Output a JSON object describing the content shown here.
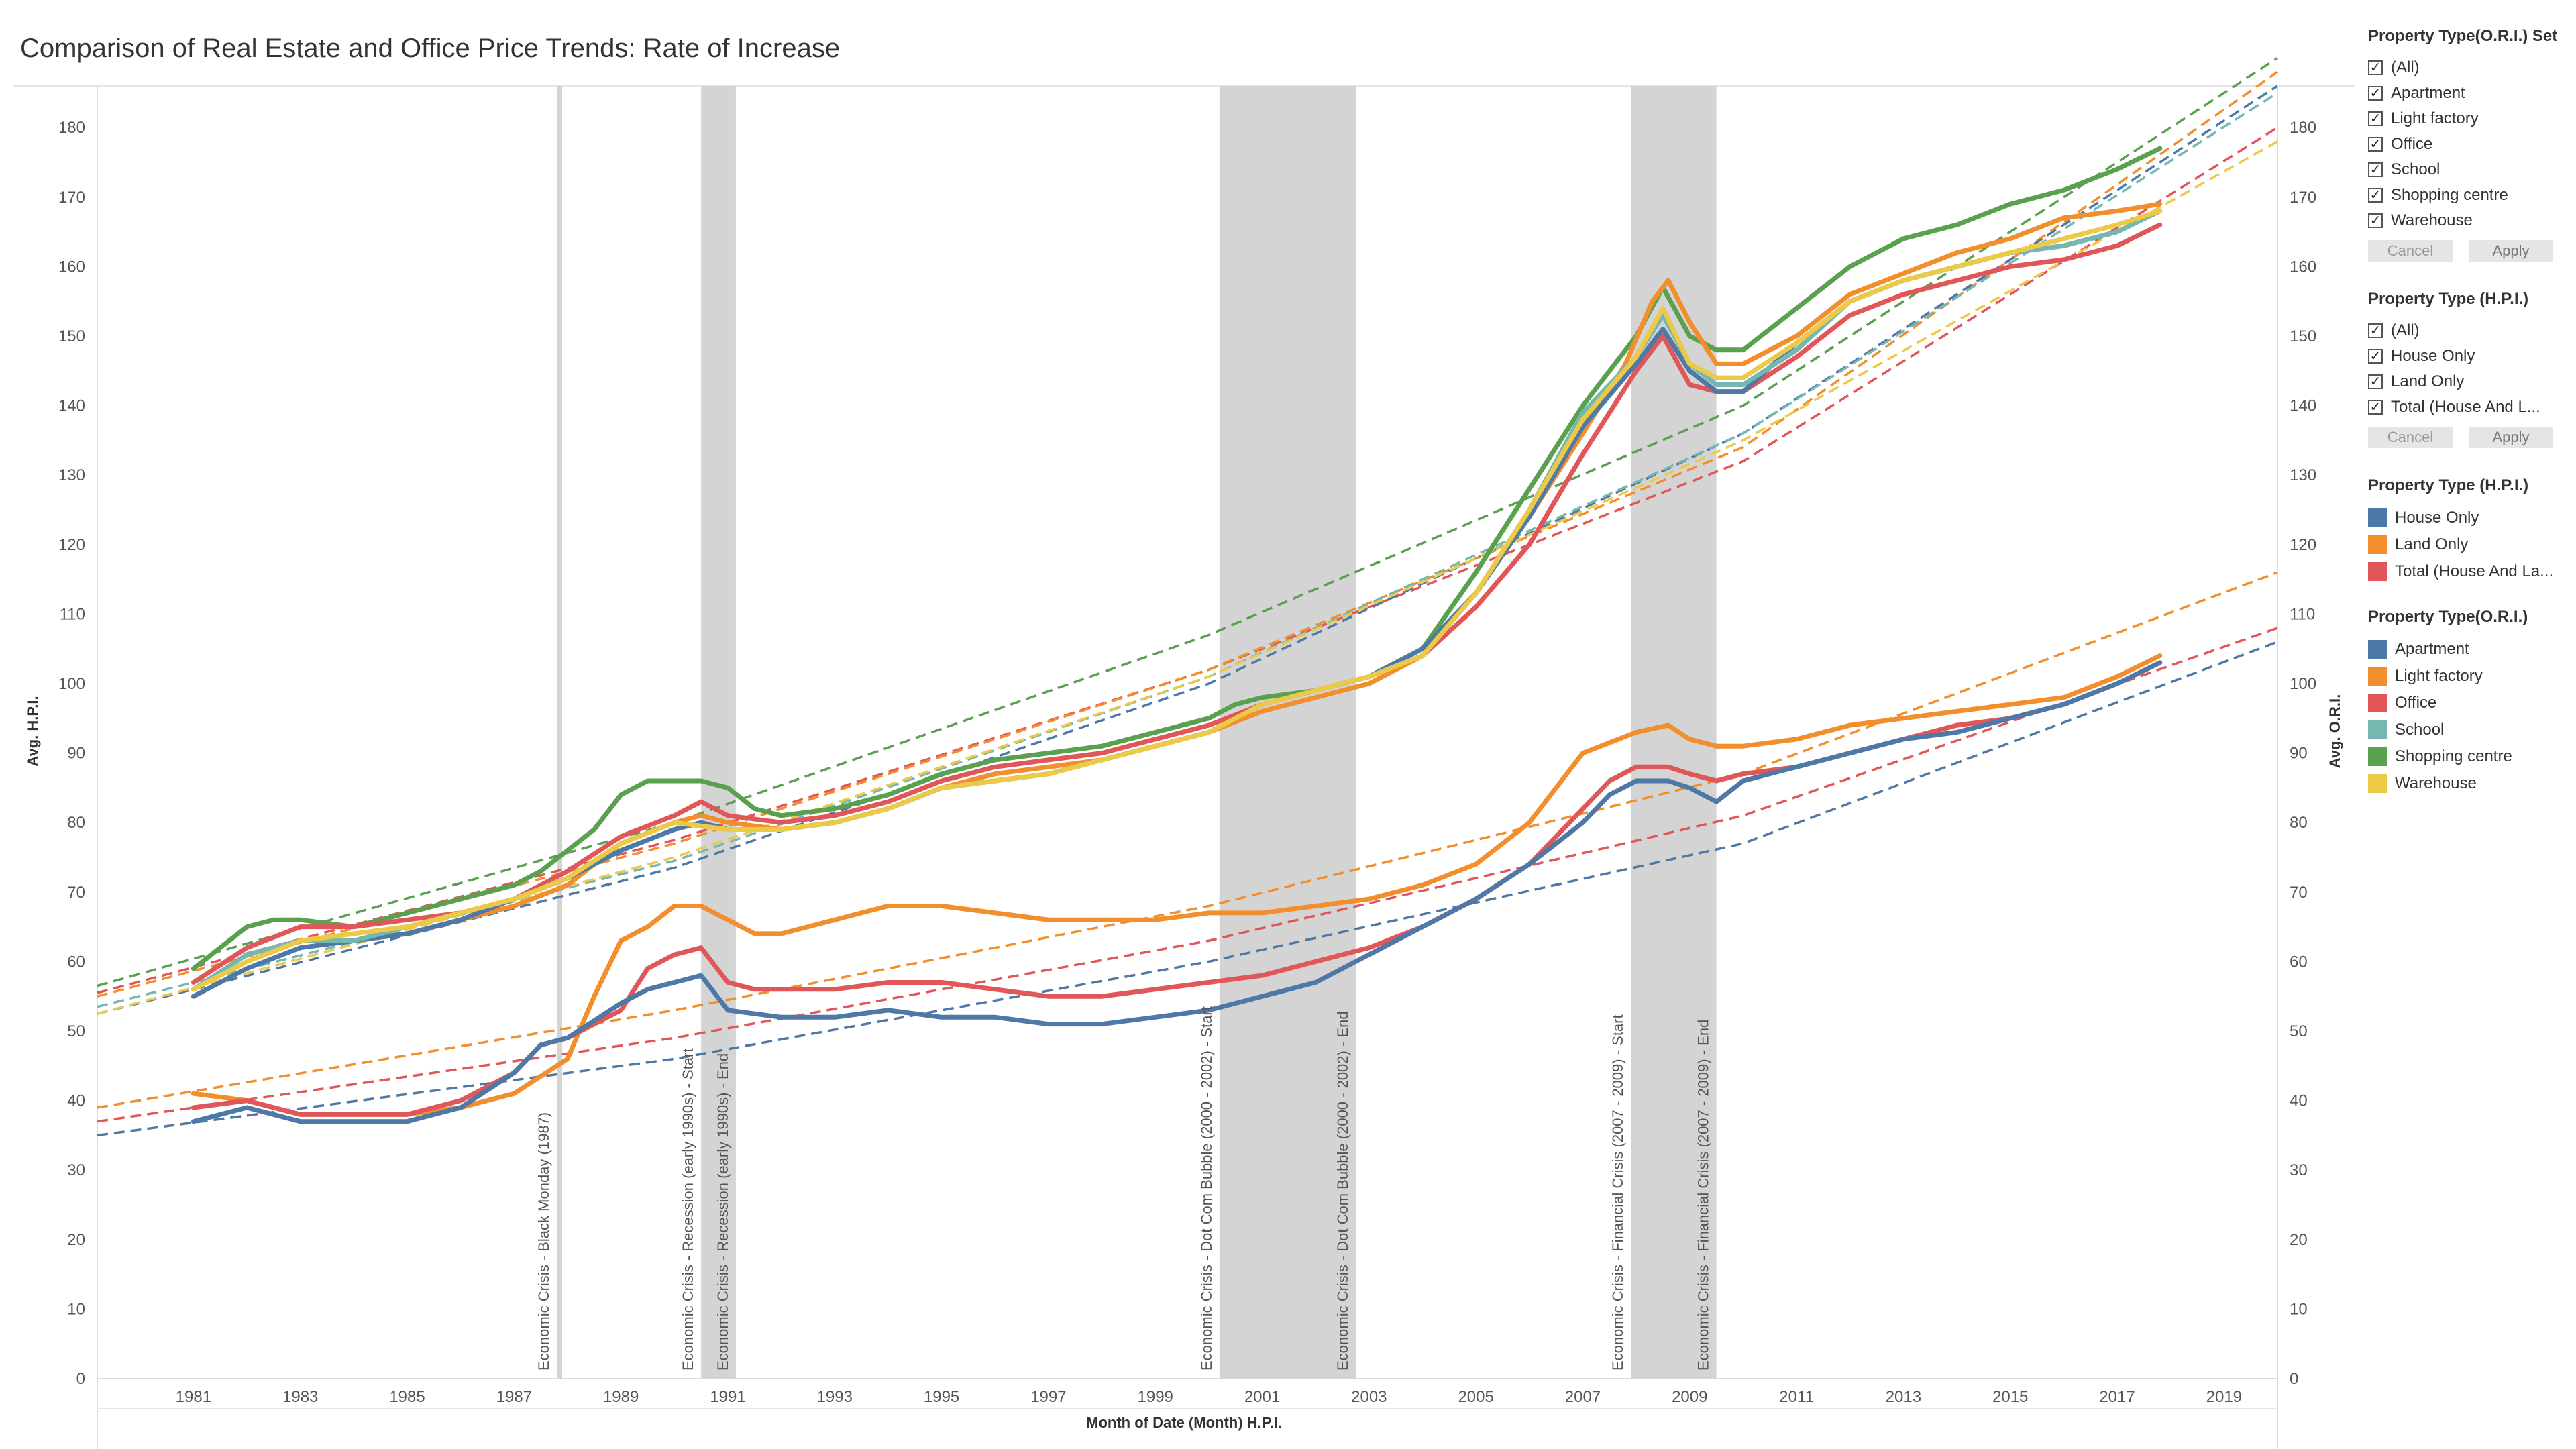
{
  "title": "Comparison of Real Estate and Office Price Trends: Rate of Increase",
  "filters": [
    {
      "title": "Property Type(O.R.I.) Set",
      "items": [
        "(All)",
        "Apartment",
        "Light factory",
        "Office",
        "School",
        "Shopping centre",
        "Warehouse"
      ],
      "cancel": "Cancel",
      "apply": "Apply"
    },
    {
      "title": "Property Type (H.P.I.)",
      "items": [
        "(All)",
        "House Only",
        "Land Only",
        "Total (House And L..."
      ],
      "cancel": "Cancel",
      "apply": "Apply"
    }
  ],
  "legends": [
    {
      "title": "Property Type (H.P.I.)",
      "items": [
        {
          "label": "House Only",
          "color": "#4e79a7"
        },
        {
          "label": "Land Only",
          "color": "#f28e2b"
        },
        {
          "label": "Total (House And La...",
          "color": "#e15759"
        }
      ]
    },
    {
      "title": "Property Type(O.R.I.)",
      "items": [
        {
          "label": "Apartment",
          "color": "#4e79a7"
        },
        {
          "label": "Light factory",
          "color": "#f28e2b"
        },
        {
          "label": "Office",
          "color": "#e15759"
        },
        {
          "label": "School",
          "color": "#76b7b2"
        },
        {
          "label": "Shopping centre",
          "color": "#59a14f"
        },
        {
          "label": "Warehouse",
          "color": "#edc948"
        }
      ]
    }
  ],
  "chart_data": {
    "type": "line",
    "xlabel": "Month of Date (Month) H.P.I.",
    "ylabel_left": "Avg. H.P.I.",
    "ylabel_right": "Avg. O.R.I.",
    "xlim": [
      1979.2,
      2020.0
    ],
    "ylim": [
      0,
      186
    ],
    "x_ticks": [
      1981,
      1983,
      1985,
      1987,
      1989,
      1991,
      1993,
      1995,
      1997,
      1999,
      2001,
      2003,
      2005,
      2007,
      2009,
      2011,
      2013,
      2015,
      2017,
      2019
    ],
    "y_ticks": [
      0,
      10,
      20,
      30,
      40,
      50,
      60,
      70,
      80,
      90,
      100,
      110,
      120,
      130,
      140,
      150,
      160,
      170,
      180
    ],
    "crisis_bands": [
      {
        "start": 1987.8,
        "end": 1987.9,
        "labels": [
          {
            "x": 1987.65,
            "text": "Economic Crisis - Black Monday (1987)"
          }
        ]
      },
      {
        "start": 1990.5,
        "end": 1991.15,
        "labels": [
          {
            "x": 1990.35,
            "text": "Economic Crisis - Recession (early 1990s) - Start"
          },
          {
            "x": 1991.0,
            "text": "Economic Crisis - Recession (early 1990s) - End"
          }
        ]
      },
      {
        "start": 2000.2,
        "end": 2002.75,
        "labels": [
          {
            "x": 2000.05,
            "text": "Economic Crisis - Dot Com Bubble (2000 - 2002) - Start"
          },
          {
            "x": 2002.6,
            "text": "Economic Crisis - Dot Com Bubble (2000 - 2002) - End"
          }
        ]
      },
      {
        "start": 2007.9,
        "end": 2009.5,
        "labels": [
          {
            "x": 2007.75,
            "text": "Economic Crisis - Financial Crisis (2007 - 2009) - Start"
          },
          {
            "x": 2009.35,
            "text": "Economic Crisis - Financial Crisis (2007 - 2009) - End"
          }
        ]
      }
    ],
    "series": [
      {
        "name": "Shopping centre",
        "color": "#59a14f",
        "x": [
          1981,
          1981.5,
          1982,
          1982.5,
          1983,
          1984,
          1985,
          1986,
          1987,
          1987.5,
          1988,
          1988.5,
          1989,
          1989.5,
          1990,
          1990.5,
          1991,
          1991.5,
          1992,
          1993,
          1994,
          1995,
          1996,
          1997,
          1998,
          1999,
          2000,
          2000.5,
          2001,
          2002,
          2003,
          2004,
          2005,
          2006,
          2007,
          2008,
          2008.5,
          2009,
          2009.5,
          2010,
          2010.5,
          2011,
          2012,
          2013,
          2014,
          2015,
          2016,
          2017,
          2017.8
        ],
        "y": [
          59,
          62,
          65,
          66,
          66,
          65,
          67,
          69,
          71,
          73,
          76,
          79,
          84,
          86,
          86,
          86,
          85,
          82,
          81,
          82,
          84,
          87,
          89,
          90,
          91,
          93,
          95,
          97,
          98,
          99,
          101,
          105,
          116,
          128,
          140,
          150,
          157,
          150,
          148,
          148,
          151,
          154,
          160,
          164,
          166,
          169,
          171,
          174,
          177
        ]
      },
      {
        "name": "Light factory",
        "color": "#f28e2b",
        "x": [
          1981,
          1982,
          1983,
          1984,
          1985,
          1986,
          1987,
          1988,
          1989,
          1990,
          1990.5,
          1991,
          1992,
          1993,
          1994,
          1995,
          1996,
          1997,
          1998,
          1999,
          2000,
          2001,
          2002,
          2003,
          2004,
          2005,
          2006,
          2007,
          2007.8,
          2008.3,
          2008.6,
          2009,
          2009.5,
          2010,
          2011,
          2012,
          2013,
          2014,
          2015,
          2016,
          2017,
          2017.8
        ],
        "y": [
          56,
          60,
          63,
          63,
          64,
          66,
          68,
          71,
          77,
          80,
          81,
          80,
          79,
          80,
          82,
          85,
          87,
          88,
          89,
          91,
          93,
          96,
          98,
          100,
          104,
          113,
          124,
          136,
          146,
          155,
          158,
          152,
          146,
          146,
          150,
          156,
          159,
          162,
          164,
          167,
          168,
          169
        ]
      },
      {
        "name": "Office",
        "color": "#e15759",
        "x": [
          1981,
          1982,
          1983,
          1984,
          1985,
          1986,
          1987,
          1988,
          1989,
          1990,
          1990.5,
          1991,
          1992,
          1993,
          1994,
          1995,
          1996,
          1997,
          1998,
          1999,
          2000,
          2001,
          2002,
          2003,
          2004,
          2005,
          2006,
          2007,
          2008,
          2008.5,
          2009,
          2009.5,
          2010,
          2011,
          2012,
          2013,
          2014,
          2015,
          2016,
          2017,
          2017.8
        ],
        "y": [
          57,
          62,
          65,
          65,
          66,
          67,
          69,
          73,
          78,
          81,
          83,
          81,
          80,
          81,
          83,
          86,
          88,
          89,
          90,
          92,
          94,
          97,
          99,
          101,
          104,
          111,
          120,
          133,
          145,
          150,
          143,
          142,
          142,
          147,
          153,
          156,
          158,
          160,
          161,
          163,
          166
        ]
      },
      {
        "name": "Apartment",
        "color": "#4e79a7",
        "x": [
          1981,
          1982,
          1983,
          1984,
          1985,
          1986,
          1987,
          1988,
          1989,
          1990,
          1990.5,
          1991,
          1992,
          1993,
          1994,
          1995,
          1996,
          1997,
          1998,
          1999,
          2000,
          2001,
          2002,
          2003,
          2004,
          2005,
          2006,
          2007,
          2008,
          2008.5,
          2009,
          2009.5,
          2010,
          2011,
          2012,
          2013,
          2014,
          2015,
          2016,
          2017,
          2017.8
        ],
        "y": [
          55,
          59,
          62,
          63,
          64,
          66,
          69,
          72,
          76,
          79,
          80,
          79,
          79,
          80,
          82,
          85,
          86,
          87,
          89,
          91,
          93,
          97,
          99,
          101,
          105,
          113,
          124,
          137,
          146,
          151,
          145,
          142,
          142,
          149,
          155,
          158,
          160,
          162,
          163,
          165,
          168
        ]
      },
      {
        "name": "School",
        "color": "#76b7b2",
        "x": [
          1981,
          1982,
          1983,
          1984,
          1985,
          1986,
          1987,
          1988,
          1989,
          1990,
          1991,
          1992,
          1993,
          1994,
          1995,
          1996,
          1997,
          1998,
          1999,
          2000,
          2001,
          2002,
          2003,
          2004,
          2005,
          2006,
          2007,
          2008,
          2008.5,
          2009,
          2009.5,
          2010,
          2011,
          2012,
          2013,
          2014,
          2015,
          2016,
          2017,
          2017.8
        ],
        "y": [
          56,
          61,
          63,
          63,
          65,
          67,
          69,
          72,
          77,
          80,
          79,
          79,
          80,
          82,
          85,
          86,
          87,
          89,
          91,
          93,
          97,
          99,
          101,
          104,
          113,
          125,
          139,
          147,
          153,
          146,
          143,
          143,
          148,
          155,
          158,
          160,
          162,
          163,
          165,
          168
        ]
      },
      {
        "name": "Warehouse",
        "color": "#edc948",
        "x": [
          1981,
          1982,
          1983,
          1984,
          1985,
          1986,
          1987,
          1988,
          1989,
          1990,
          1991,
          1992,
          1993,
          1994,
          1995,
          1996,
          1997,
          1998,
          1999,
          2000,
          2001,
          2002,
          2003,
          2004,
          2005,
          2006,
          2007,
          2008,
          2008.5,
          2009,
          2009.5,
          2010,
          2011,
          2012,
          2013,
          2014,
          2015,
          2016,
          2017,
          2017.8
        ],
        "y": [
          56,
          60,
          63,
          64,
          65,
          67,
          69,
          72,
          77,
          80,
          79,
          79,
          80,
          82,
          85,
          86,
          87,
          89,
          91,
          93,
          97,
          99,
          101,
          104,
          113,
          125,
          138,
          147,
          154,
          146,
          144,
          144,
          149,
          155,
          158,
          160,
          162,
          164,
          166,
          168
        ]
      },
      {
        "name": "Land Only",
        "color": "#f28e2b",
        "x": [
          1981,
          1982,
          1983,
          1984,
          1985,
          1986,
          1987,
          1988,
          1988.5,
          1989,
          1989.5,
          1990,
          1990.5,
          1991,
          1991.5,
          1992,
          1992.5,
          1993,
          1994,
          1995,
          1996,
          1997,
          1998,
          1999,
          2000,
          2001,
          2002,
          2003,
          2004,
          2005,
          2006,
          2007,
          2008,
          2008.6,
          2009,
          2009.5,
          2010,
          2011,
          2012,
          2013,
          2014,
          2015,
          2016,
          2017,
          2017.8
        ],
        "y": [
          41,
          40,
          38,
          38,
          38,
          39,
          41,
          46,
          55,
          63,
          65,
          68,
          68,
          66,
          64,
          64,
          65,
          66,
          68,
          68,
          67,
          66,
          66,
          66,
          67,
          67,
          68,
          69,
          71,
          74,
          80,
          90,
          93,
          94,
          92,
          91,
          91,
          92,
          94,
          95,
          96,
          97,
          98,
          101,
          104
        ]
      },
      {
        "name": "Total (House And Land)",
        "color": "#e15759",
        "x": [
          1981,
          1982,
          1983,
          1984,
          1985,
          1986,
          1987,
          1987.5,
          1988,
          1989,
          1989.5,
          1990,
          1990.5,
          1991,
          1991.5,
          1992,
          1993,
          1994,
          1995,
          1996,
          1997,
          1998,
          1999,
          2000,
          2001,
          2002,
          2003,
          2004,
          2005,
          2006,
          2007,
          2007.5,
          2008,
          2008.6,
          2009,
          2009.5,
          2010,
          2011,
          2012,
          2013,
          2014,
          2015,
          2016,
          2017,
          2017.8
        ],
        "y": [
          39,
          40,
          38,
          38,
          38,
          40,
          44,
          48,
          49,
          53,
          59,
          61,
          62,
          57,
          56,
          56,
          56,
          57,
          57,
          56,
          55,
          55,
          56,
          57,
          58,
          60,
          62,
          65,
          69,
          74,
          82,
          86,
          88,
          88,
          87,
          86,
          87,
          88,
          90,
          92,
          94,
          95,
          97,
          100,
          103
        ]
      },
      {
        "name": "House Only",
        "color": "#4e79a7",
        "x": [
          1981,
          1982,
          1983,
          1984,
          1985,
          1986,
          1987,
          1987.5,
          1988,
          1989,
          1989.5,
          1990,
          1990.5,
          1991,
          1992,
          1993,
          1994,
          1995,
          1996,
          1997,
          1998,
          1999,
          2000,
          2001,
          2002,
          2003,
          2004,
          2005,
          2006,
          2007,
          2007.5,
          2008,
          2008.6,
          2009,
          2009.5,
          2010,
          2011,
          2012,
          2013,
          2014,
          2015,
          2016,
          2017,
          2017.8
        ],
        "y": [
          37,
          39,
          37,
          37,
          37,
          39,
          44,
          48,
          49,
          54,
          56,
          57,
          58,
          53,
          52,
          52,
          53,
          52,
          52,
          51,
          51,
          52,
          53,
          55,
          57,
          61,
          65,
          69,
          74,
          80,
          84,
          86,
          86,
          85,
          83,
          86,
          88,
          90,
          92,
          93,
          95,
          97,
          100,
          103
        ]
      }
    ],
    "trends": [
      {
        "name": "Shopping centre",
        "color": "#59a14f",
        "x": [
          1979.2,
          1990,
          2000,
          2010,
          2020
        ],
        "y": [
          56.5,
          80,
          107,
          140,
          190
        ]
      },
      {
        "name": "Office",
        "color": "#e15759",
        "x": [
          1979.2,
          1990,
          2000,
          2010,
          2020
        ],
        "y": [
          55.5,
          77.5,
          102,
          132,
          180
        ]
      },
      {
        "name": "Light factory",
        "color": "#f28e2b",
        "x": [
          1979.2,
          1990,
          2000,
          2010,
          2020
        ],
        "y": [
          55,
          77,
          102,
          134,
          188
        ]
      },
      {
        "name": "Apartment",
        "color": "#4e79a7",
        "x": [
          1979.2,
          1990,
          2000,
          2010,
          2020
        ],
        "y": [
          52.5,
          73.5,
          100,
          136,
          186
        ]
      },
      {
        "name": "School",
        "color": "#76b7b2",
        "x": [
          1979.2,
          1990,
          2000,
          2010,
          2020
        ],
        "y": [
          53.5,
          74.5,
          101,
          136,
          185
        ]
      },
      {
        "name": "Warehouse",
        "color": "#edc948",
        "x": [
          1979.2,
          1990,
          2000,
          2010,
          2020
        ],
        "y": [
          52.5,
          75,
          101,
          135,
          178
        ]
      },
      {
        "name": "Land Only",
        "color": "#f28e2b",
        "x": [
          1979.2,
          1990,
          2000,
          2010,
          2020
        ],
        "y": [
          39,
          53,
          68,
          87,
          116
        ]
      },
      {
        "name": "Total (House And Land)",
        "color": "#e15759",
        "x": [
          1979.2,
          1990,
          2000,
          2010,
          2020
        ],
        "y": [
          37,
          49,
          63,
          81,
          108
        ]
      },
      {
        "name": "House Only",
        "color": "#4e79a7",
        "x": [
          1979.2,
          1990,
          2000,
          2010,
          2020
        ],
        "y": [
          35,
          46,
          60,
          77,
          106
        ]
      }
    ]
  }
}
